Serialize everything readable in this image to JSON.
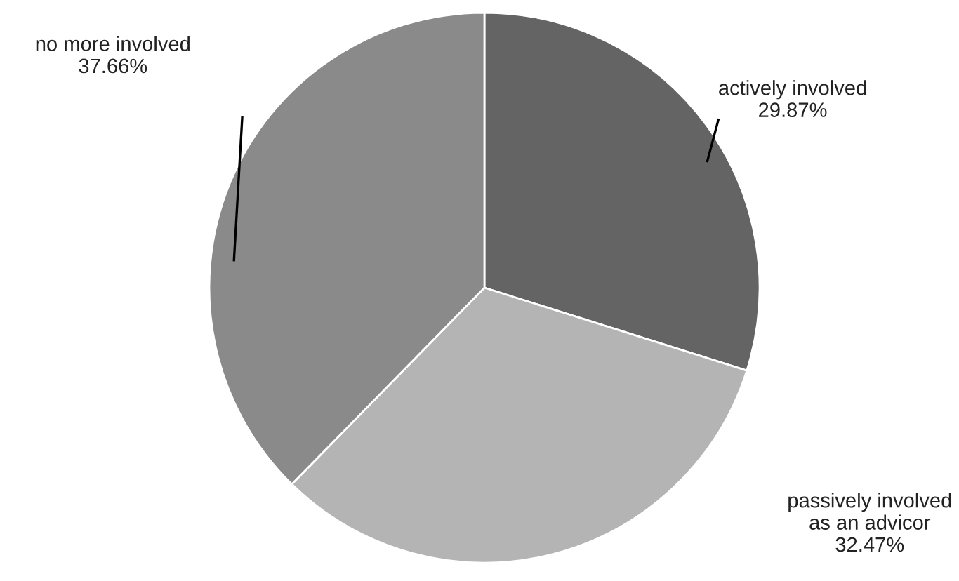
{
  "chart_data": {
    "type": "pie",
    "categories": [
      "actively involved",
      "passively involved\nas an advicor",
      "no more involved"
    ],
    "values": [
      29.87,
      32.47,
      37.66
    ],
    "value_labels": [
      "29.87%",
      "32.47%",
      "37.66%"
    ],
    "colors": [
      "#646464",
      "#b4b4b4",
      "#8a8a8a"
    ],
    "legend": false
  }
}
